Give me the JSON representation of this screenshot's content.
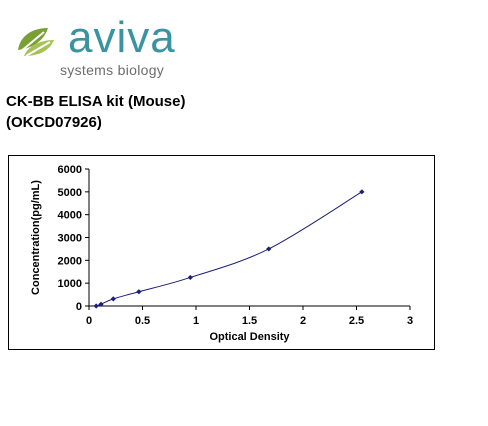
{
  "brand": {
    "name": "aviva",
    "tagline": "systems biology",
    "colors": {
      "primary": "#3a93a3",
      "leaf_dark": "#7a9f35",
      "leaf_light": "#a6c257"
    }
  },
  "title": {
    "line1": "CK-BB ELISA kit (Mouse)",
    "line2": "(OKCD07926)"
  },
  "chart_data": {
    "type": "scatter",
    "title": "",
    "xlabel": "Optical Density",
    "ylabel": "Concentration(pg/mL)",
    "xlim": [
      0,
      3
    ],
    "ylim": [
      0,
      6000
    ],
    "xticks": [
      0,
      0.5,
      1,
      1.5,
      2,
      2.5,
      3
    ],
    "xtick_labels": [
      "0",
      "0.5",
      "1",
      "1.5",
      "2",
      "2.5",
      "3"
    ],
    "yticks": [
      0,
      1000,
      2000,
      3000,
      4000,
      5000,
      6000
    ],
    "ytick_labels": [
      "0",
      "1000",
      "2000",
      "3000",
      "4000",
      "5000",
      "6000"
    ],
    "grid": false,
    "legend": "none",
    "series": [
      {
        "x": [
          0.067,
          0.112,
          0.227,
          0.466,
          0.947,
          1.68,
          2.55
        ],
        "y": [
          0,
          78,
          312,
          625,
          1250,
          2500,
          5000
        ],
        "marker": "diamond",
        "line": "smooth",
        "color": "#1e1e78"
      }
    ]
  }
}
